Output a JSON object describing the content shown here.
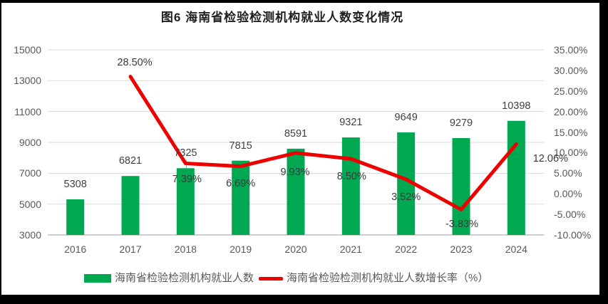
{
  "title": "图6  海南省检验检测机构就业人数变化情况",
  "colors": {
    "bar": "#00A852",
    "line": "#ED0000",
    "grid": "#D9D9D9",
    "axis_line": "#BFBFBF",
    "tick_text": "#595959",
    "value_label_text": "#404040",
    "pct_label_text": "#3a3a3a"
  },
  "legend": [
    {
      "label": "海南省检验检测机构就业人数",
      "type": "bar"
    },
    {
      "label": "海南省检验检测机构就业人数增长率（%）",
      "type": "line"
    }
  ],
  "chart_data": {
    "type": "bar+line",
    "title": "图6  海南省检验检测机构就业人数变化情况",
    "categories": [
      "2016",
      "2017",
      "2018",
      "2019",
      "2020",
      "2021",
      "2022",
      "2023",
      "2024"
    ],
    "series": [
      {
        "name": "海南省检验检测机构就业人数",
        "type": "bar",
        "axis": "left",
        "values": [
          5308,
          6821,
          7325,
          7815,
          8591,
          9321,
          9649,
          9279,
          10398
        ]
      },
      {
        "name": "海南省检验检测机构就业人数增长率（%）",
        "type": "line",
        "axis": "right",
        "values": [
          null,
          28.5,
          7.39,
          6.69,
          9.93,
          8.5,
          3.52,
          -3.83,
          12.06
        ]
      }
    ],
    "value_labels": [
      "5308",
      "6821",
      "7325",
      "7815",
      "8591",
      "9321",
      "9649",
      "9279",
      "10398"
    ],
    "pct_labels": [
      null,
      "28.50%",
      "7.39%",
      "6.69%",
      "9.93%",
      "8.50%",
      "3.52%",
      "-3.83%",
      "12.06%"
    ],
    "left_axis": {
      "min": 3000,
      "max": 15000,
      "step": 2000,
      "ticks": [
        "3000",
        "5000",
        "7000",
        "9000",
        "11000",
        "13000",
        "15000"
      ]
    },
    "right_axis": {
      "min": -10,
      "max": 35,
      "step": 5,
      "ticks": [
        "-10.00%",
        "-5.00%",
        "0.00%",
        "5.00%",
        "10.00%",
        "15.00%",
        "20.00%",
        "25.00%",
        "30.00%",
        "35.00%"
      ]
    },
    "grid": true,
    "legend_position": "bottom"
  }
}
